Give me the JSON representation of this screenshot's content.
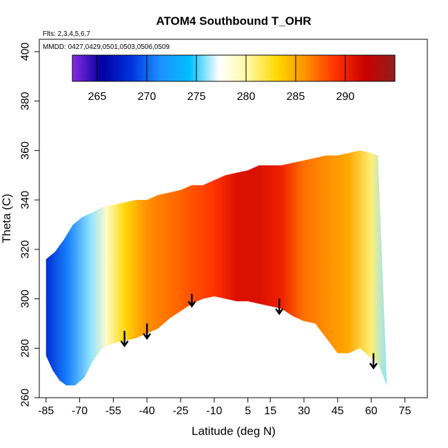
{
  "chart_data": {
    "type": "heatmap",
    "title": "ATOM4 Southbound T_OHR",
    "flights_label": "Flts: 2,3,4,5,6,7",
    "dates_label": "MMDD: 0427,0429,0501,0503,0506,0509",
    "xlabel": "Latitude (deg N)",
    "ylabel": "Theta (C)",
    "xlim": [
      -88,
      85
    ],
    "ylim": [
      260,
      405
    ],
    "x_ticks": [
      -85,
      -70,
      -55,
      -40,
      -25,
      -10,
      5,
      15,
      30,
      45,
      60,
      75
    ],
    "y_ticks": [
      260,
      280,
      300,
      320,
      340,
      360,
      380,
      400
    ],
    "colorbar": {
      "range": [
        262.5,
        295
      ],
      "ticks": [
        265,
        270,
        275,
        280,
        285,
        290
      ],
      "colors": [
        "#8a2be2",
        "#0000a0",
        "#0033dd",
        "#1e90ff",
        "#00bfff",
        "#ffffff",
        "#fff8a0",
        "#ffd700",
        "#ff8c00",
        "#ff3000",
        "#c80000",
        "#902020"
      ]
    },
    "data_region_top_theta": [
      [
        -85,
        316
      ],
      [
        -81,
        319
      ],
      [
        -77,
        324
      ],
      [
        -73,
        330
      ],
      [
        -69,
        333
      ],
      [
        -64,
        335
      ],
      [
        -60,
        337
      ],
      [
        -55,
        338
      ],
      [
        -50,
        339
      ],
      [
        -45,
        340
      ],
      [
        -40,
        340
      ],
      [
        -35,
        342
      ],
      [
        -30,
        343
      ],
      [
        -25,
        344
      ],
      [
        -20,
        346
      ],
      [
        -15,
        346
      ],
      [
        -10,
        348
      ],
      [
        -5,
        350
      ],
      [
        0,
        351
      ],
      [
        5,
        352
      ],
      [
        10,
        354
      ],
      [
        15,
        354
      ],
      [
        20,
        354
      ],
      [
        25,
        355
      ],
      [
        30,
        356
      ],
      [
        35,
        357
      ],
      [
        40,
        358
      ],
      [
        45,
        358
      ],
      [
        50,
        359
      ],
      [
        55,
        360
      ],
      [
        60,
        359
      ],
      [
        63,
        358
      ]
    ],
    "data_region_bottom_theta": [
      [
        -85,
        277
      ],
      [
        -82,
        271
      ],
      [
        -79,
        267
      ],
      [
        -76,
        265
      ],
      [
        -72,
        265
      ],
      [
        -68,
        268
      ],
      [
        -64,
        275
      ],
      [
        -60,
        280
      ],
      [
        -55,
        282
      ],
      [
        -50,
        283
      ],
      [
        -45,
        284
      ],
      [
        -40,
        286
      ],
      [
        -35,
        288
      ],
      [
        -30,
        292
      ],
      [
        -25,
        295
      ],
      [
        -20,
        298
      ],
      [
        -15,
        300
      ],
      [
        -10,
        301
      ],
      [
        -5,
        300
      ],
      [
        0,
        299
      ],
      [
        5,
        299
      ],
      [
        10,
        298
      ],
      [
        15,
        297
      ],
      [
        20,
        296
      ],
      [
        25,
        293
      ],
      [
        30,
        291
      ],
      [
        35,
        290
      ],
      [
        40,
        284
      ],
      [
        45,
        278
      ],
      [
        50,
        278
      ],
      [
        55,
        280
      ],
      [
        60,
        276
      ],
      [
        63,
        274
      ],
      [
        66,
        267
      ],
      [
        67,
        265
      ]
    ],
    "temperature_profile_by_latitude": [
      {
        "lat": -85,
        "temp": 268
      },
      {
        "lat": -75,
        "temp": 271
      },
      {
        "lat": -65,
        "temp": 276
      },
      {
        "lat": -58,
        "temp": 279
      },
      {
        "lat": -50,
        "temp": 283
      },
      {
        "lat": -40,
        "temp": 286
      },
      {
        "lat": -30,
        "temp": 287
      },
      {
        "lat": -20,
        "temp": 288
      },
      {
        "lat": -10,
        "temp": 289
      },
      {
        "lat": 0,
        "temp": 291
      },
      {
        "lat": 10,
        "temp": 291
      },
      {
        "lat": 20,
        "temp": 290
      },
      {
        "lat": 30,
        "temp": 287
      },
      {
        "lat": 40,
        "temp": 286
      },
      {
        "lat": 50,
        "temp": 285
      },
      {
        "lat": 60,
        "temp": 281
      },
      {
        "lat": 67,
        "temp": 276
      }
    ],
    "arrows": [
      {
        "lat": -50,
        "theta_top": 287,
        "theta_bottom": 281
      },
      {
        "lat": -40,
        "theta_top": 290,
        "theta_bottom": 284
      },
      {
        "lat": -20,
        "theta_top": 302,
        "theta_bottom": 297
      },
      {
        "lat": 19,
        "theta_top": 300,
        "theta_bottom": 294
      },
      {
        "lat": 61,
        "theta_top": 278,
        "theta_bottom": 272
      }
    ]
  }
}
